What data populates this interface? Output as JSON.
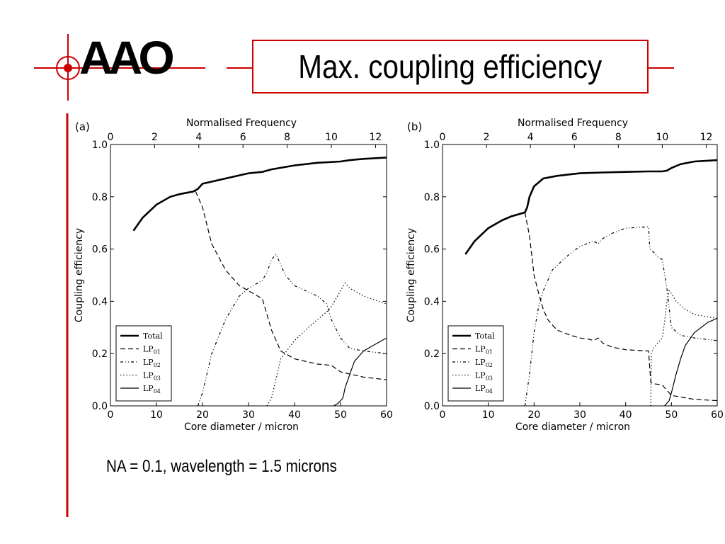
{
  "slide": {
    "title": "Max. coupling efficiency",
    "logo_text": "AAO",
    "caption": "NA = 0.1, wavelength = 1.5 microns",
    "accent_color": "#cc0000"
  },
  "chart_data": [
    {
      "type": "line",
      "panel_label": "(a)",
      "xlabel": "Core diameter / micron",
      "x2label": "Normalised Frequency",
      "ylabel": "Coupling efficiency",
      "xlim": [
        0,
        60
      ],
      "ylim": [
        0,
        1.0
      ],
      "x2lim": [
        0,
        12.5
      ],
      "xticks": [
        "0",
        "10",
        "20",
        "30",
        "40",
        "50",
        "60"
      ],
      "yticks": [
        "0.0",
        "0.2",
        "0.4",
        "0.6",
        "0.8",
        "1.0"
      ],
      "x2ticks": [
        "0",
        "2",
        "4",
        "6",
        "8",
        "10",
        "12"
      ],
      "legend_position": "lower-left",
      "series": [
        {
          "name": "Total",
          "style": "solid-thick",
          "x": [
            5,
            7,
            10,
            13,
            15,
            18,
            19,
            20,
            25,
            30,
            33,
            34,
            35,
            40,
            45,
            50,
            52,
            55,
            60
          ],
          "y": [
            0.67,
            0.72,
            0.77,
            0.8,
            0.81,
            0.82,
            0.83,
            0.85,
            0.87,
            0.89,
            0.895,
            0.9,
            0.905,
            0.92,
            0.93,
            0.935,
            0.94,
            0.945,
            0.95
          ]
        },
        {
          "name": "LP01",
          "style": "dashed",
          "x": [
            18.5,
            20,
            22,
            25,
            28,
            30,
            33,
            35,
            37,
            40,
            45,
            48,
            50,
            55,
            60
          ],
          "y": [
            0.82,
            0.76,
            0.62,
            0.52,
            0.46,
            0.44,
            0.41,
            0.29,
            0.21,
            0.18,
            0.16,
            0.155,
            0.13,
            0.11,
            0.1
          ]
        },
        {
          "name": "LP02",
          "style": "dashdot",
          "x": [
            19,
            20,
            22,
            25,
            28,
            30,
            33,
            34,
            35,
            36,
            38,
            40,
            45,
            47,
            48,
            50,
            52,
            55,
            60
          ],
          "y": [
            0.0,
            0.05,
            0.2,
            0.33,
            0.42,
            0.45,
            0.48,
            0.51,
            0.56,
            0.58,
            0.5,
            0.46,
            0.42,
            0.39,
            0.33,
            0.26,
            0.22,
            0.21,
            0.2
          ]
        },
        {
          "name": "LP03",
          "style": "dotted",
          "x": [
            34,
            35,
            37,
            40,
            43,
            45,
            47,
            48,
            50,
            51,
            52,
            55,
            60
          ],
          "y": [
            0.0,
            0.03,
            0.18,
            0.25,
            0.3,
            0.33,
            0.36,
            0.38,
            0.44,
            0.47,
            0.45,
            0.42,
            0.39
          ]
        },
        {
          "name": "LP04",
          "style": "solid-thin",
          "x": [
            48.5,
            49.5,
            50.5,
            51,
            52,
            53,
            55,
            58,
            60
          ],
          "y": [
            0.0,
            0.01,
            0.03,
            0.07,
            0.12,
            0.17,
            0.21,
            0.24,
            0.26
          ]
        }
      ]
    },
    {
      "type": "line",
      "panel_label": "(b)",
      "xlabel": "Core diameter / micron",
      "x2label": "Normalised Frequency",
      "ylabel": "Coupling efficiency",
      "xlim": [
        0,
        60
      ],
      "ylim": [
        0,
        1.0
      ],
      "x2lim": [
        0,
        12.5
      ],
      "xticks": [
        "0",
        "10",
        "20",
        "30",
        "40",
        "50",
        "60"
      ],
      "yticks": [
        "0.0",
        "0.2",
        "0.4",
        "0.6",
        "0.8",
        "1.0"
      ],
      "x2ticks": [
        "0",
        "2",
        "4",
        "6",
        "8",
        "10",
        "12"
      ],
      "legend_position": "lower-left",
      "series": [
        {
          "name": "Total",
          "style": "solid-thick",
          "x": [
            5,
            7,
            10,
            13,
            15,
            18,
            18.5,
            19,
            20,
            22,
            25,
            30,
            35,
            40,
            45,
            48,
            49,
            50,
            52,
            55,
            60
          ],
          "y": [
            0.58,
            0.63,
            0.68,
            0.71,
            0.725,
            0.74,
            0.76,
            0.8,
            0.84,
            0.87,
            0.88,
            0.89,
            0.893,
            0.895,
            0.897,
            0.897,
            0.9,
            0.91,
            0.925,
            0.935,
            0.94
          ]
        },
        {
          "name": "LP01",
          "style": "dashed",
          "x": [
            18,
            19,
            20,
            21,
            22,
            23,
            25,
            28,
            30,
            32,
            33,
            34,
            35,
            37,
            40,
            45,
            45.5,
            46,
            48,
            50,
            55,
            60
          ],
          "y": [
            0.74,
            0.65,
            0.5,
            0.43,
            0.37,
            0.33,
            0.29,
            0.27,
            0.26,
            0.255,
            0.25,
            0.26,
            0.24,
            0.225,
            0.215,
            0.21,
            0.09,
            0.085,
            0.08,
            0.04,
            0.025,
            0.02
          ]
        },
        {
          "name": "LP02",
          "style": "dashdot",
          "x": [
            18,
            19,
            20,
            21,
            22,
            24,
            27,
            30,
            33,
            34,
            35,
            37,
            40,
            45,
            45.3,
            46,
            47,
            48,
            49,
            50,
            52,
            55,
            60
          ],
          "y": [
            0.0,
            0.12,
            0.28,
            0.38,
            0.44,
            0.52,
            0.57,
            0.61,
            0.63,
            0.62,
            0.64,
            0.66,
            0.68,
            0.685,
            0.6,
            0.59,
            0.57,
            0.56,
            0.45,
            0.3,
            0.27,
            0.26,
            0.25
          ]
        },
        {
          "name": "LP03",
          "style": "dotted",
          "x": [
            45.5,
            45.6,
            46,
            47,
            48,
            48.5,
            49,
            49.5,
            50,
            51,
            53,
            55,
            58,
            60
          ],
          "y": [
            0.0,
            0.2,
            0.22,
            0.24,
            0.26,
            0.32,
            0.4,
            0.44,
            0.43,
            0.4,
            0.37,
            0.35,
            0.34,
            0.335
          ]
        },
        {
          "name": "LP04",
          "style": "solid-thin",
          "x": [
            48.5,
            49.5,
            50,
            51,
            52,
            53,
            55,
            58,
            60
          ],
          "y": [
            0.0,
            0.02,
            0.05,
            0.12,
            0.18,
            0.23,
            0.28,
            0.32,
            0.335
          ]
        }
      ]
    }
  ]
}
